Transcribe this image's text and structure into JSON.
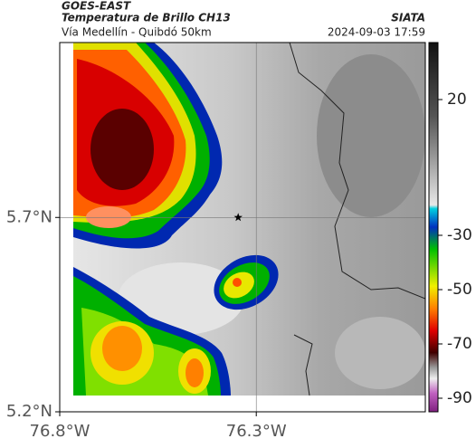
{
  "header": {
    "title": "GOES-EAST",
    "subtitle": "Temperatura de Brillo CH13",
    "route": "Vía Medellín - Quibdó 50km",
    "source": "SIATA",
    "timestamp": "2024-09-03 17:59"
  },
  "map": {
    "xlim": [
      -76.8,
      -75.87
    ],
    "ylim": [
      5.2,
      6.15
    ],
    "xticks": [
      {
        "value": -76.8,
        "label": "76.8°W"
      },
      {
        "value": -76.3,
        "label": "76.3°W"
      }
    ],
    "yticks": [
      {
        "value": 5.2,
        "label": "5.2°N"
      },
      {
        "value": 5.7,
        "label": "5.7°N"
      }
    ],
    "grid": true,
    "marker": {
      "lon": -76.346,
      "lat": 5.7
    }
  },
  "colorbar": {
    "clim": [
      -95,
      41
    ],
    "ticks": [
      20,
      -30,
      -50,
      -70,
      -90
    ]
  }
}
